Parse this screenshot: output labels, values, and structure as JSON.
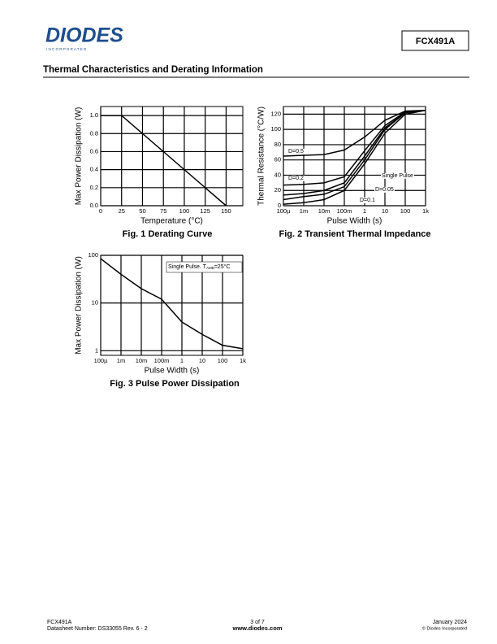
{
  "header": {
    "logo": "DIODES",
    "logo_sub": "I N C O R P O R A T E D",
    "part": "FCX491A",
    "section": "Thermal Characteristics and Derating Information"
  },
  "chart_data": [
    {
      "type": "line",
      "title": "Fig. 1  Derating Curve",
      "x_label": "Temperature (°C)",
      "y_label": "Max Power Dissipation (W)",
      "x": [
        0,
        25,
        150
      ],
      "values": [
        1.0,
        1.0,
        0
      ],
      "color": "#000000",
      "xlim": [
        0,
        170
      ],
      "xticks": [
        0,
        25,
        50,
        75,
        100,
        125,
        150
      ],
      "ylim": [
        0,
        1.1
      ],
      "yticks": [
        {
          "value": 0,
          "label": "0.0"
        },
        0.2,
        0.4,
        0.6,
        0.8,
        {
          "value": 1,
          "label": "1.0"
        }
      ],
      "grid": true
    },
    {
      "type": "line",
      "title": "Fig. 2  Transient Thermal Impedance",
      "x_label": "Pulse Width (s)",
      "y_label": "Thermal Resistance (°C/W)",
      "xscale": "log",
      "x": [
        0.0001,
        0.001,
        0.01,
        0.1,
        1,
        10,
        100,
        1000
      ],
      "series": [
        {
          "name": "D=0.5",
          "color": "#000000",
          "values": [
            65,
            66,
            67,
            73,
            90,
            112,
            124,
            125
          ]
        },
        {
          "name": "D=0.2",
          "color": "#000000",
          "values": [
            27,
            28,
            30,
            38,
            72,
            105,
            123,
            125
          ]
        },
        {
          "name": "Single Pulse",
          "color": "#000000",
          "values": [
            2,
            4,
            8,
            20,
            55,
            95,
            120,
            125
          ]
        },
        {
          "name": "D=0.05",
          "color": "#000000",
          "values": [
            8,
            12,
            15,
            25,
            60,
            100,
            122,
            125
          ]
        },
        {
          "name": "D=0.1",
          "color": "#000000",
          "values": [
            14,
            16,
            20,
            30,
            65,
            102,
            122,
            125
          ]
        }
      ],
      "xlim": [
        0.0001,
        1000
      ],
      "xticks": [
        {
          "value": 0.0001,
          "label": "100µ"
        },
        {
          "value": 0.001,
          "label": "1m"
        },
        {
          "value": 0.01,
          "label": "10m"
        },
        {
          "value": 0.1,
          "label": "100m"
        },
        1,
        10,
        100,
        {
          "value": 1000,
          "label": "1k"
        }
      ],
      "ylim": [
        0,
        130
      ],
      "yticks": [
        0,
        20,
        40,
        60,
        80,
        100,
        120
      ],
      "grid": true
    },
    {
      "type": "line",
      "title": "Fig. 3  Pulse Power Dissipation",
      "x_label": "Pulse Width (s)",
      "y_label": "Max Power Dissipation (W)",
      "xscale": "log",
      "yscale": "log",
      "x": [
        0.0001,
        0.001,
        0.01,
        0.1,
        1,
        10,
        100,
        1000
      ],
      "values": [
        85,
        40,
        20,
        12,
        4,
        2.2,
        1.3,
        1.1
      ],
      "color": "#000000",
      "annotation": {
        "text": "Single Pulse. T",
        "sub": "AMB",
        "rest": "=25°C"
      },
      "xlim": [
        0.0001,
        1000
      ],
      "xticks": [
        {
          "value": 0.0001,
          "label": "100µ"
        },
        {
          "value": 0.001,
          "label": "1m"
        },
        {
          "value": 0.01,
          "label": "10m"
        },
        {
          "value": 0.1,
          "label": "100m"
        },
        1,
        10,
        100,
        {
          "value": 1000,
          "label": "1k"
        }
      ],
      "ylim": [
        0.8,
        100
      ],
      "yticks": [
        1,
        10,
        100
      ],
      "grid": true
    }
  ],
  "footer": {
    "part": "FCX491A",
    "datasheet": "Datasheet Number: DS33055 Rev. 6 - 2",
    "page": "3 of 7",
    "url": "www.diodes.com",
    "date": "January 2024",
    "copyright": "© Diodes Incorporated"
  }
}
